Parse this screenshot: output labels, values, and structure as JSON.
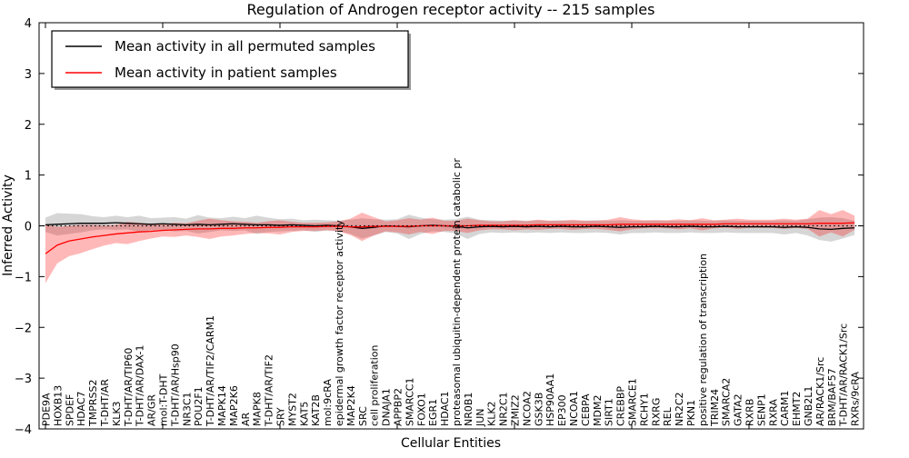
{
  "chart_data": {
    "type": "line",
    "title": "Regulation of Androgen receptor activity -- 215 samples",
    "xlabel": "Cellular Entities",
    "ylabel": "Inferred Activity",
    "ylim": [
      -4,
      4
    ],
    "yticks": [
      -4,
      -3,
      -2,
      -1,
      0,
      1,
      2,
      3,
      4
    ],
    "grid": false,
    "legend_position": "upper left",
    "zero_reference_line": true,
    "categories": [
      "PDE9A",
      "HOXB13",
      "SPDEF",
      "HDAC7",
      "TMPRSS2",
      "T-DHT/AR",
      "KLK3",
      "T-DHT/AR/TIP60",
      "T-DHT/AR/DAX-1",
      "AR/GR",
      "mol:T-DHT",
      "T-DHT/AR/Hsp90",
      "NR3C1",
      "POU2F1",
      "T-DHT/AR/TIF2/CARM1",
      "MAPK14",
      "MAP2K6",
      "AR",
      "MAPK8",
      "T-DHT/AR/TIF2",
      "SRY",
      "MYST2",
      "KAT5",
      "KAT2B",
      "mol:9cRA",
      "epidermal growth factor receptor activity",
      "MAP2K4",
      "SRC",
      "cell proliferation",
      "DNAJA1",
      "APPBP2",
      "SMARCC1",
      "FOXO1",
      "EGR1",
      "HDAC1",
      "proteasomal ubiquitin-dependent protein catabolic pr",
      "NR0B1",
      "JUN",
      "KLK2",
      "NR2C1",
      "ZMIZ2",
      "NCOA2",
      "GSK3B",
      "HSP90AA1",
      "EP300",
      "NCOA1",
      "CEBPA",
      "MDM2",
      "SIRT1",
      "CREBBP",
      "SMARCE1",
      "RCHY1",
      "RXRG",
      "REL",
      "NR2C2",
      "PKN1",
      "positive regulation of transcription",
      "TRIM24",
      "SMARCA2",
      "GATA2",
      "RXRB",
      "SENP1",
      "RXRA",
      "CARM1",
      "EHMT2",
      "GNB2L1",
      "AR/RACK1/Src",
      "BRM/BAF57",
      "T-DHT/AR/RACK1/Src",
      "RXRs/9cRA"
    ],
    "series": [
      {
        "name": "Mean activity in all permuted samples",
        "color": "#000000",
        "band_color": "rgba(120,120,120,0.30)",
        "values": [
          0.02,
          0.03,
          0.04,
          0.05,
          0.05,
          0.05,
          0.06,
          0.05,
          0.04,
          0.03,
          0.04,
          0.03,
          0.02,
          0.03,
          0.02,
          0.03,
          0.04,
          0.03,
          0.02,
          0.02,
          0.01,
          0.02,
          0.01,
          0.0,
          0.01,
          0.0,
          -0.02,
          -0.05,
          -0.03,
          0.0,
          -0.01,
          -0.02,
          0.0,
          0.01,
          0.0,
          -0.01,
          -0.04,
          -0.02,
          -0.01,
          -0.02,
          -0.01,
          -0.02,
          -0.01,
          -0.02,
          -0.01,
          -0.02,
          -0.02,
          -0.01,
          -0.02,
          -0.03,
          -0.02,
          -0.02,
          -0.01,
          -0.02,
          -0.02,
          -0.01,
          -0.02,
          -0.02,
          -0.01,
          -0.02,
          -0.02,
          -0.02,
          -0.02,
          -0.03,
          -0.02,
          -0.03,
          -0.06,
          -0.07,
          -0.05,
          -0.04
        ],
        "band_halfwidth": [
          0.14,
          0.22,
          0.2,
          0.18,
          0.14,
          0.12,
          0.14,
          0.12,
          0.16,
          0.12,
          0.12,
          0.14,
          0.12,
          0.18,
          0.14,
          0.12,
          0.14,
          0.12,
          0.18,
          0.14,
          0.12,
          0.12,
          0.1,
          0.12,
          0.1,
          0.1,
          0.14,
          0.2,
          0.16,
          0.12,
          0.14,
          0.24,
          0.16,
          0.12,
          0.12,
          0.14,
          0.22,
          0.14,
          0.12,
          0.12,
          0.12,
          0.12,
          0.12,
          0.12,
          0.12,
          0.12,
          0.12,
          0.12,
          0.12,
          0.14,
          0.12,
          0.12,
          0.12,
          0.12,
          0.12,
          0.12,
          0.12,
          0.12,
          0.12,
          0.12,
          0.12,
          0.12,
          0.12,
          0.14,
          0.12,
          0.16,
          0.22,
          0.24,
          0.2,
          0.14
        ]
      },
      {
        "name": "Mean activity in patient samples",
        "color": "#ff0000",
        "band_color": "rgba(255,0,0,0.28)",
        "values": [
          -0.55,
          -0.38,
          -0.3,
          -0.26,
          -0.22,
          -0.19,
          -0.16,
          -0.14,
          -0.12,
          -0.11,
          -0.09,
          -0.08,
          -0.07,
          -0.06,
          -0.06,
          -0.05,
          -0.05,
          -0.04,
          -0.04,
          -0.03,
          -0.03,
          -0.02,
          -0.02,
          -0.02,
          -0.01,
          -0.01,
          -0.02,
          -0.02,
          -0.01,
          -0.01,
          -0.01,
          -0.01,
          0.0,
          0.0,
          0.0,
          0.0,
          0.0,
          0.01,
          0.01,
          0.01,
          0.01,
          0.01,
          0.02,
          0.02,
          0.02,
          0.02,
          0.02,
          0.02,
          0.02,
          0.03,
          0.03,
          0.03,
          0.03,
          0.03,
          0.03,
          0.03,
          0.03,
          0.03,
          0.04,
          0.04,
          0.04,
          0.04,
          0.04,
          0.04,
          0.04,
          0.04,
          0.05,
          0.05,
          0.05,
          0.06
        ],
        "band_halfwidth": [
          0.58,
          0.36,
          0.3,
          0.28,
          0.24,
          0.2,
          0.18,
          0.22,
          0.18,
          0.14,
          0.12,
          0.14,
          0.12,
          0.16,
          0.2,
          0.16,
          0.14,
          0.12,
          0.1,
          0.12,
          0.14,
          0.1,
          0.08,
          0.08,
          0.08,
          0.1,
          0.16,
          0.28,
          0.18,
          0.1,
          0.12,
          0.16,
          0.12,
          0.16,
          0.1,
          0.1,
          0.14,
          0.1,
          0.08,
          0.08,
          0.1,
          0.08,
          0.1,
          0.08,
          0.08,
          0.1,
          0.08,
          0.08,
          0.1,
          0.14,
          0.1,
          0.08,
          0.08,
          0.08,
          0.1,
          0.08,
          0.12,
          0.08,
          0.08,
          0.1,
          0.08,
          0.08,
          0.08,
          0.1,
          0.08,
          0.1,
          0.26,
          0.18,
          0.26,
          0.14
        ]
      }
    ]
  },
  "legend": {
    "entries": [
      {
        "label": "Mean activity in all permuted samples",
        "color": "#000000"
      },
      {
        "label": "Mean activity in patient samples",
        "color": "#ff0000"
      }
    ]
  },
  "colors": {
    "axis": "#000000",
    "background": "#ffffff",
    "permuted_line": "#000000",
    "patient_line": "#ff0000",
    "permuted_band": "rgba(120,120,120,0.30)",
    "patient_band": "rgba(255,0,0,0.28)"
  }
}
